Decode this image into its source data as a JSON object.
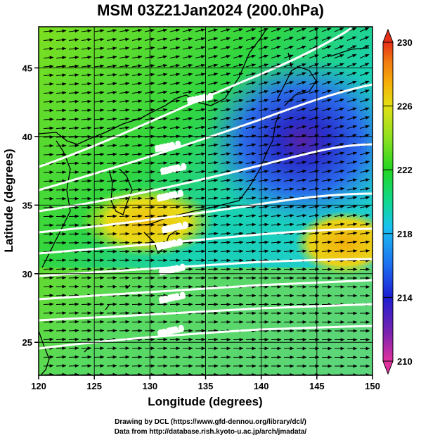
{
  "title": "MSM 03Z21Jan2024 (200.0hPa)",
  "map": {
    "xlabel": "Longitude (degrees)",
    "ylabel": "Latitude  (degrees)",
    "lon_range": [
      120,
      150
    ],
    "lat_range": [
      22.6,
      48.0
    ],
    "lon_ticks": [
      {
        "value": 120,
        "label": "120"
      },
      {
        "value": 125,
        "label": "125"
      },
      {
        "value": 130,
        "label": "130"
      },
      {
        "value": 135,
        "label": "135"
      },
      {
        "value": 140,
        "label": "140"
      },
      {
        "value": 145,
        "label": "145"
      },
      {
        "value": 150,
        "label": "150"
      }
    ],
    "lat_ticks": [
      {
        "value": 25,
        "label": "25"
      },
      {
        "value": 30,
        "label": "30"
      },
      {
        "value": 35,
        "label": "35"
      },
      {
        "value": 40,
        "label": "40"
      },
      {
        "value": 45,
        "label": "45"
      }
    ],
    "grid": true,
    "wind_vectors": "uniform arrows, generally westerly (west-to-east)",
    "contours": [
      {
        "label": "11600.0"
      },
      {
        "label": "11800.0"
      },
      {
        "label": "11950.0"
      },
      {
        "label": "12000.0"
      },
      {
        "label": "12050.0"
      },
      {
        "label": "12100.0"
      },
      {
        "label": "12200.0"
      },
      {
        "label": "12400.0"
      },
      {
        "label": "12450.0"
      }
    ]
  },
  "colorbar": {
    "variable": "temperature",
    "min": 210,
    "max": 230,
    "tick_labels": [
      "230",
      "226",
      "222",
      "218",
      "214",
      "210"
    ],
    "colors": [
      "#e0309e",
      "#7a22b0",
      "#1e1ed2",
      "#1c6df0",
      "#19c2f0",
      "#10d890",
      "#22d622",
      "#8ee020",
      "#e2e015",
      "#f5b008",
      "#f07a10",
      "#e83018"
    ]
  },
  "credits": {
    "line1": "Drawing by DCL (https://www.gfd-dennou.org/library/dcl/)",
    "line2": "Data from http://database.rish.kyoto-u.ac.jp/arch/jmadata/"
  }
}
